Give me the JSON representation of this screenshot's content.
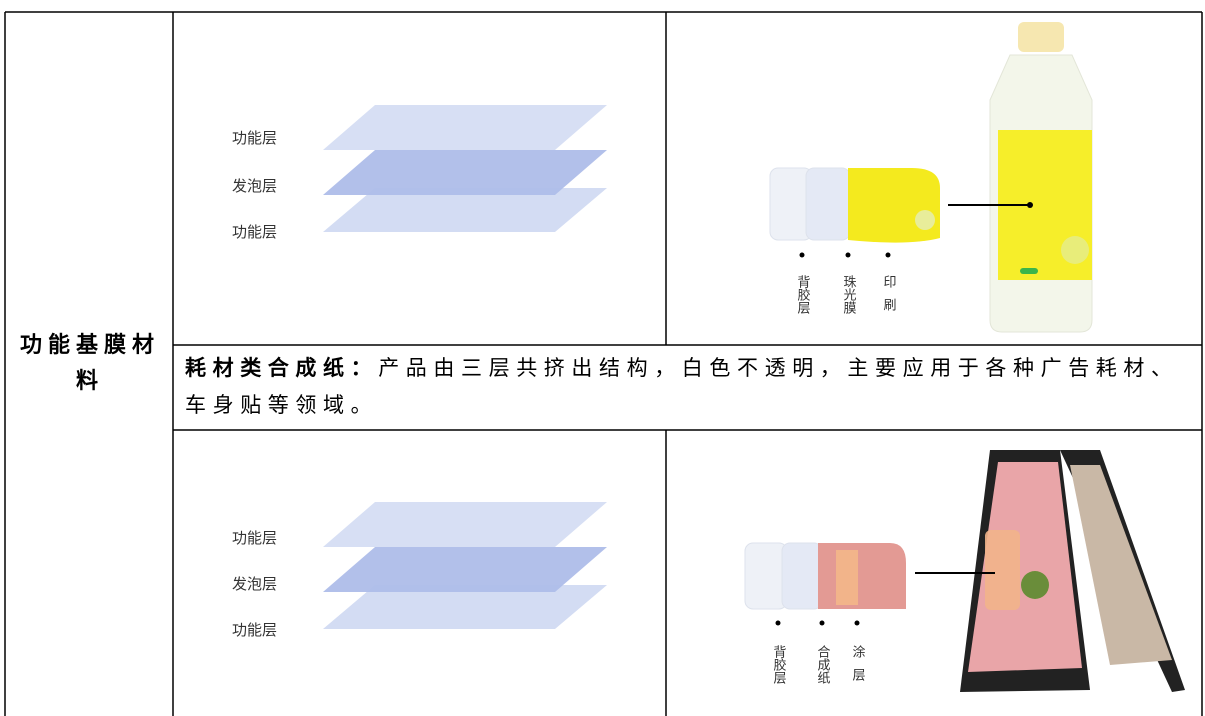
{
  "table": {
    "row_header": "功能基膜材料",
    "rows": [
      {
        "diagram_labels": [
          "功能层",
          "发泡层",
          "功能层"
        ],
        "sample_labels": [
          "背胶层",
          "珠光膜",
          "印刷"
        ]
      },
      {
        "title": "耗材类合成纸：",
        "text": "产品由三层共挤出结构，白色不透明，主要应用于各种广告耗材、车身贴等领域。"
      },
      {
        "diagram_labels": [
          "功能层",
          "发泡层",
          "功能层"
        ],
        "sample_labels": [
          "背胶层",
          "合成纸",
          "涂层"
        ]
      }
    ]
  }
}
